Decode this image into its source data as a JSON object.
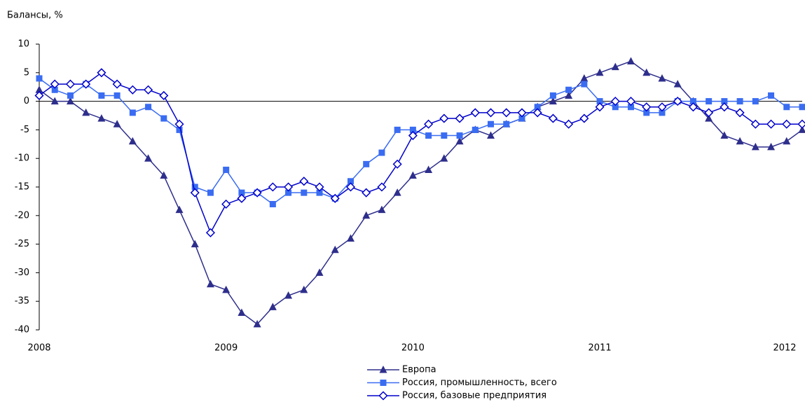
{
  "chart_data": {
    "type": "line",
    "y_label": "Балансы, %",
    "categories": [
      "2008",
      null,
      null,
      null,
      null,
      null,
      null,
      null,
      null,
      null,
      null,
      null,
      "2009",
      null,
      null,
      null,
      null,
      null,
      null,
      null,
      null,
      null,
      null,
      null,
      "2010",
      null,
      null,
      null,
      null,
      null,
      null,
      null,
      null,
      null,
      null,
      null,
      "2011",
      null,
      null,
      null,
      null,
      null,
      null,
      null,
      null,
      null,
      null,
      null,
      "2012",
      null
    ],
    "ylim": [
      -40,
      10
    ],
    "yticks": [
      -40,
      -35,
      -30,
      -25,
      -20,
      -15,
      -10,
      -5,
      0,
      5,
      10
    ],
    "series": [
      {
        "name": "Европа",
        "color": "#2e2e8c",
        "marker": "triangle",
        "values": [
          2,
          0,
          0,
          -2,
          -3,
          -4,
          -7,
          -10,
          -13,
          -19,
          -25,
          -32,
          -33,
          -37,
          -39,
          -36,
          -34,
          -33,
          -30,
          -26,
          -24,
          -20,
          -19,
          -16,
          -13,
          -12,
          -10,
          -7,
          -5,
          -6,
          -4,
          -3,
          -1,
          0,
          1,
          4,
          5,
          6,
          7,
          5,
          4,
          3,
          0,
          -3,
          -6,
          -7,
          -8,
          -8,
          -7,
          -5
        ]
      },
      {
        "name": "Россия, промышленность, всего",
        "color": "#3a6cf2",
        "marker": "square",
        "values": [
          4,
          2,
          1,
          3,
          1,
          1,
          -2,
          -1,
          -3,
          -5,
          -15,
          -16,
          -12,
          -16,
          -16,
          -18,
          -16,
          -16,
          -16,
          -17,
          -14,
          -11,
          -9,
          -5,
          -5,
          -6,
          -6,
          -6,
          -5,
          -4,
          -4,
          -3,
          -1,
          1,
          2,
          3,
          0,
          -1,
          -1,
          -2,
          -2,
          0,
          0,
          0,
          0,
          0,
          0,
          1,
          -1,
          -1
        ]
      },
      {
        "name": "Россия, базовые предприятия",
        "color": "#0000cc",
        "marker": "diamond",
        "values": [
          1,
          3,
          3,
          3,
          5,
          3,
          2,
          2,
          1,
          -4,
          -16,
          -23,
          -18,
          -17,
          -16,
          -15,
          -15,
          -14,
          -15,
          -17,
          -15,
          -16,
          -15,
          -11,
          -6,
          -4,
          -3,
          -3,
          -2,
          -2,
          -2,
          -2,
          -2,
          -3,
          -4,
          -3,
          -1,
          0,
          0,
          -1,
          -1,
          0,
          -1,
          -2,
          -1,
          -2,
          -4,
          -4,
          -4,
          -4
        ]
      }
    ]
  }
}
